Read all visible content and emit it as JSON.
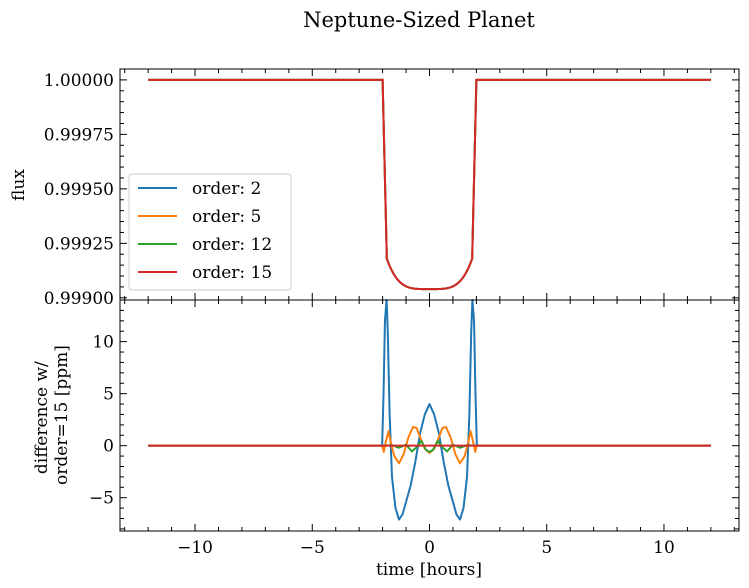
{
  "chart_data": {
    "type": "line",
    "title": "Neptune-Sized Planet",
    "xlabel": "time [hours]",
    "x_ticks": [
      -10,
      -5,
      0,
      5,
      10
    ],
    "xlim": [
      -13.2,
      13.2
    ],
    "panels": [
      {
        "id": "top",
        "ylabel": "flux",
        "ylim": [
          0.99899,
          1.00005
        ],
        "y_ticks": [
          "1.00000",
          "0.99975",
          "0.99950",
          "0.99925",
          "0.99900"
        ],
        "legend_placement": "center-left",
        "series": [
          {
            "name": "order: 2",
            "color": "#1f77b4"
          },
          {
            "name": "order: 5",
            "color": "#ff7f0e"
          },
          {
            "name": "order: 12",
            "color": "#2ca02c"
          },
          {
            "name": "order: 15",
            "color": "#d62728"
          }
        ],
        "model": {
          "t_range": [
            -12,
            12
          ],
          "ingress_start": 2.0,
          "full_transit": 1.82,
          "depth_center": 0.99904,
          "limb_edge_flux": 0.99918
        }
      },
      {
        "id": "bottom",
        "ylabel_lines": [
          "difference w/",
          "order=15 [ppm]"
        ],
        "ylim": [
          -8.2,
          14.0
        ],
        "y_ticks": [
          10,
          5,
          0,
          -5
        ],
        "series": [
          {
            "name": "order: 2",
            "color": "#1f77b4",
            "points": [
              [
                -12,
                0
              ],
              [
                -2.02,
                0
              ],
              [
                -1.96,
                5
              ],
              [
                -1.9,
                12
              ],
              [
                -1.83,
                14.0
              ],
              [
                -1.78,
                11
              ],
              [
                -1.7,
                3
              ],
              [
                -1.6,
                -3
              ],
              [
                -1.45,
                -6
              ],
              [
                -1.3,
                -7.1
              ],
              [
                -1.15,
                -6.6
              ],
              [
                -0.95,
                -5
              ],
              [
                -0.8,
                -3.8
              ],
              [
                -0.6,
                -1.5
              ],
              [
                -0.4,
                1.2
              ],
              [
                -0.2,
                3
              ],
              [
                0,
                4
              ],
              [
                0.2,
                3
              ],
              [
                0.4,
                1.2
              ],
              [
                0.6,
                -1.5
              ],
              [
                0.8,
                -3.8
              ],
              [
                0.95,
                -5
              ],
              [
                1.15,
                -6.6
              ],
              [
                1.3,
                -7.1
              ],
              [
                1.45,
                -6
              ],
              [
                1.6,
                -3
              ],
              [
                1.7,
                3
              ],
              [
                1.78,
                11
              ],
              [
                1.83,
                14.0
              ],
              [
                1.9,
                12
              ],
              [
                1.96,
                5
              ],
              [
                2.02,
                0
              ],
              [
                12,
                0
              ]
            ]
          },
          {
            "name": "order: 5",
            "color": "#ff7f0e",
            "points": [
              [
                -12,
                0
              ],
              [
                -2.02,
                0
              ],
              [
                -1.95,
                -0.6
              ],
              [
                -1.85,
                0.5
              ],
              [
                -1.75,
                1.4
              ],
              [
                -1.65,
                0.3
              ],
              [
                -1.5,
                -1.0
              ],
              [
                -1.3,
                -1.7
              ],
              [
                -1.1,
                -0.8
              ],
              [
                -0.9,
                0.8
              ],
              [
                -0.7,
                1.8
              ],
              [
                -0.55,
                1.7
              ],
              [
                -0.4,
                0.8
              ],
              [
                -0.2,
                -0.3
              ],
              [
                0,
                -0.7
              ],
              [
                0.2,
                -0.3
              ],
              [
                0.4,
                0.8
              ],
              [
                0.55,
                1.7
              ],
              [
                0.7,
                1.8
              ],
              [
                0.9,
                0.8
              ],
              [
                1.1,
                -0.8
              ],
              [
                1.3,
                -1.7
              ],
              [
                1.5,
                -1.0
              ],
              [
                1.65,
                0.3
              ],
              [
                1.75,
                1.4
              ],
              [
                1.85,
                0.5
              ],
              [
                1.95,
                -0.6
              ],
              [
                2.02,
                0
              ],
              [
                12,
                0
              ]
            ]
          },
          {
            "name": "order: 12",
            "color": "#2ca02c",
            "points": [
              [
                -12,
                0
              ],
              [
                -1.9,
                0
              ],
              [
                -1.6,
                0.05
              ],
              [
                -1.3,
                -0.2
              ],
              [
                -1.0,
                0.1
              ],
              [
                -0.75,
                -0.55
              ],
              [
                -0.55,
                -0.15
              ],
              [
                -0.35,
                0.45
              ],
              [
                -0.15,
                -0.4
              ],
              [
                0,
                -0.6
              ],
              [
                0.15,
                -0.4
              ],
              [
                0.35,
                0.45
              ],
              [
                0.55,
                -0.15
              ],
              [
                0.75,
                -0.55
              ],
              [
                1.0,
                0.1
              ],
              [
                1.3,
                -0.2
              ],
              [
                1.6,
                0.05
              ],
              [
                1.9,
                0
              ],
              [
                12,
                0
              ]
            ]
          },
          {
            "name": "order: 15",
            "color": "#d62728",
            "points": [
              [
                -12,
                0
              ],
              [
                12,
                0
              ]
            ]
          }
        ]
      }
    ]
  }
}
